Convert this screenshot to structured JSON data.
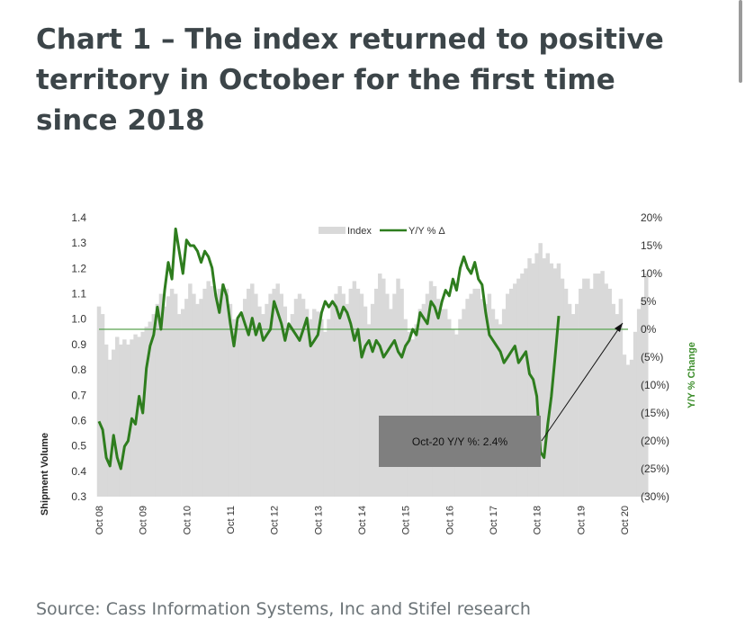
{
  "page": {
    "title": "Chart 1 – The index returned to positive territory in October for the first time since 2018",
    "source": "Source: Cass Information Systems, Inc and Stifel research"
  },
  "colors": {
    "index_bars": "#d9d9d9",
    "yoy_line": "#2e7d1e",
    "reference_line": "#5aa552",
    "annotation_box": "#7f7f7f",
    "text": "#3c4549"
  },
  "chart_data": {
    "type": "bar",
    "title": "",
    "left_axis": {
      "label": "Shipment Volume",
      "range": [
        0.3,
        1.4
      ],
      "ticks": [
        "1.4",
        "1.3",
        "1.2",
        "1.1",
        "1.0",
        "0.9",
        "0.8",
        "0.7",
        "0.6",
        "0.5",
        "0.4",
        "0.3"
      ]
    },
    "right_axis": {
      "label": "Y/Y % Change",
      "range": [
        -30,
        20
      ],
      "ticks": [
        "20%",
        "15%",
        "10%",
        "5%",
        "0%",
        "(5%)",
        "(10%)",
        "(15%)",
        "(20%)",
        "(25%)",
        "(30%)"
      ]
    },
    "x_labels": [
      "Oct 08",
      "Oct 09",
      "Oct 10",
      "Oct 11",
      "Oct 12",
      "Oct 13",
      "Oct 14",
      "Oct 15",
      "Oct 16",
      "Oct 17",
      "Oct 18",
      "Oct 19",
      "Oct 20"
    ],
    "legend": {
      "placement": "top-center",
      "entries": [
        "Index",
        "Y/Y % Δ"
      ]
    },
    "grid": false,
    "annotation": {
      "text": "Oct-20 Y/Y %: 2.4%"
    },
    "series": [
      {
        "name": "Index",
        "kind": "bar",
        "axis": "left",
        "anchors": [
          [
            0,
            1.05
          ],
          [
            1,
            1.02
          ],
          [
            2,
            0.9
          ],
          [
            3,
            0.84
          ],
          [
            4,
            0.88
          ],
          [
            5,
            0.93
          ],
          [
            6,
            0.9
          ],
          [
            7,
            0.92
          ],
          [
            8,
            0.9
          ],
          [
            9,
            0.92
          ],
          [
            10,
            0.94
          ],
          [
            11,
            0.93
          ],
          [
            12,
            0.95
          ],
          [
            13,
            0.97
          ],
          [
            14,
            0.99
          ],
          [
            15,
            1.02
          ],
          [
            16,
            1.06
          ],
          [
            17,
            1.1
          ],
          [
            18,
            1.05
          ],
          [
            19,
            1.09
          ],
          [
            20,
            1.12
          ],
          [
            21,
            1.1
          ],
          [
            22,
            1.02
          ],
          [
            23,
            1.04
          ],
          [
            24,
            1.08
          ],
          [
            25,
            1.14
          ],
          [
            26,
            1.1
          ],
          [
            27,
            1.06
          ],
          [
            28,
            1.08
          ],
          [
            29,
            1.12
          ],
          [
            30,
            1.15
          ],
          [
            31,
            1.13
          ],
          [
            32,
            1.1
          ],
          [
            33,
            1.12
          ],
          [
            34,
            1.14
          ],
          [
            35,
            1.12
          ],
          [
            36,
            1.06
          ],
          [
            37,
            1.0
          ],
          [
            38,
            0.98
          ],
          [
            39,
            1.02
          ],
          [
            40,
            1.08
          ],
          [
            41,
            1.12
          ],
          [
            42,
            1.14
          ],
          [
            43,
            1.1
          ],
          [
            44,
            1.05
          ],
          [
            45,
            1.02
          ],
          [
            46,
            1.06
          ],
          [
            47,
            1.1
          ],
          [
            48,
            1.12
          ],
          [
            49,
            1.14
          ],
          [
            50,
            1.1
          ],
          [
            51,
            1.05
          ],
          [
            52,
            0.98
          ],
          [
            53,
            1.02
          ],
          [
            54,
            1.08
          ],
          [
            55,
            1.1
          ],
          [
            56,
            1.08
          ],
          [
            57,
            1.04
          ],
          [
            58,
            1.0
          ],
          [
            59,
            1.04
          ],
          [
            60,
            1.03
          ],
          [
            61,
            1.0
          ],
          [
            62,
            0.95
          ],
          [
            63,
            1.0
          ],
          [
            64,
            1.06
          ],
          [
            65,
            1.1
          ],
          [
            66,
            1.13
          ],
          [
            67,
            1.1
          ],
          [
            68,
            1.06
          ],
          [
            69,
            1.12
          ],
          [
            70,
            1.15
          ],
          [
            71,
            1.12
          ],
          [
            72,
            1.1
          ],
          [
            73,
            1.05
          ],
          [
            74,
            0.98
          ],
          [
            75,
            1.06
          ],
          [
            76,
            1.12
          ],
          [
            77,
            1.18
          ],
          [
            78,
            1.16
          ],
          [
            79,
            1.1
          ],
          [
            80,
            1.04
          ],
          [
            81,
            1.1
          ],
          [
            82,
            1.16
          ],
          [
            83,
            1.12
          ],
          [
            84,
            1.0
          ],
          [
            85,
            0.95
          ],
          [
            86,
            0.92
          ],
          [
            87,
            0.98
          ],
          [
            88,
            1.04
          ],
          [
            89,
            1.06
          ],
          [
            90,
            1.1
          ],
          [
            91,
            1.15
          ],
          [
            92,
            1.13
          ],
          [
            93,
            1.08
          ],
          [
            94,
            1.04
          ],
          [
            95,
            1.04
          ],
          [
            96,
            1.0
          ],
          [
            97,
            0.96
          ],
          [
            98,
            0.94
          ],
          [
            99,
            1.0
          ],
          [
            100,
            1.04
          ],
          [
            101,
            1.08
          ],
          [
            102,
            1.1
          ],
          [
            103,
            1.12
          ],
          [
            104,
            1.12
          ],
          [
            105,
            1.08
          ],
          [
            106,
            1.06
          ],
          [
            107,
            1.1
          ],
          [
            108,
            1.04
          ],
          [
            109,
            1.0
          ],
          [
            110,
            0.98
          ],
          [
            111,
            1.04
          ],
          [
            112,
            1.1
          ],
          [
            113,
            1.12
          ],
          [
            114,
            1.14
          ],
          [
            115,
            1.16
          ],
          [
            116,
            1.18
          ],
          [
            117,
            1.2
          ],
          [
            118,
            1.24
          ],
          [
            119,
            1.22
          ],
          [
            120,
            1.26
          ],
          [
            121,
            1.3
          ],
          [
            122,
            1.24
          ],
          [
            123,
            1.26
          ],
          [
            124,
            1.22
          ],
          [
            125,
            1.2
          ],
          [
            126,
            1.22
          ],
          [
            127,
            1.16
          ],
          [
            128,
            1.12
          ],
          [
            129,
            1.06
          ],
          [
            130,
            1.02
          ],
          [
            131,
            1.06
          ],
          [
            132,
            1.12
          ],
          [
            133,
            1.16
          ],
          [
            134,
            1.16
          ],
          [
            135,
            1.12
          ],
          [
            136,
            1.18
          ],
          [
            137,
            1.18
          ],
          [
            138,
            1.19
          ],
          [
            139,
            1.14
          ],
          [
            140,
            1.12
          ],
          [
            141,
            1.06
          ],
          [
            142,
            1.02
          ],
          [
            143,
            1.08
          ],
          [
            144,
            0.86
          ],
          [
            145,
            0.82
          ],
          [
            146,
            0.84
          ],
          [
            147,
            0.95
          ],
          [
            148,
            1.04
          ],
          [
            149,
            1.08
          ],
          [
            150,
            1.18
          ]
        ]
      },
      {
        "name": "Y/Y % Δ",
        "kind": "line",
        "axis": "right",
        "anchors": [
          [
            0,
            -16.5
          ],
          [
            1,
            -18
          ],
          [
            2,
            -23
          ],
          [
            3,
            -24.5
          ],
          [
            4,
            -19
          ],
          [
            5,
            -23
          ],
          [
            6,
            -25
          ],
          [
            7,
            -21
          ],
          [
            8,
            -20
          ],
          [
            9,
            -16
          ],
          [
            10,
            -17
          ],
          [
            11,
            -12
          ],
          [
            12,
            -15
          ],
          [
            13,
            -7
          ],
          [
            14,
            -3
          ],
          [
            15,
            -1
          ],
          [
            16,
            4
          ],
          [
            17,
            0
          ],
          [
            18,
            7
          ],
          [
            19,
            12
          ],
          [
            20,
            9
          ],
          [
            21,
            18
          ],
          [
            22,
            14
          ],
          [
            23,
            10
          ],
          [
            24,
            16
          ],
          [
            25,
            15
          ],
          [
            26,
            15
          ],
          [
            27,
            14
          ],
          [
            28,
            12
          ],
          [
            29,
            14
          ],
          [
            30,
            13
          ],
          [
            31,
            11
          ],
          [
            32,
            6
          ],
          [
            33,
            3
          ],
          [
            34,
            8
          ],
          [
            35,
            6
          ],
          [
            36,
            1
          ],
          [
            37,
            -3
          ],
          [
            38,
            2
          ],
          [
            39,
            3
          ],
          [
            40,
            1
          ],
          [
            41,
            -1
          ],
          [
            42,
            2
          ],
          [
            43,
            -1
          ],
          [
            44,
            1
          ],
          [
            45,
            -2
          ],
          [
            46,
            -1
          ],
          [
            47,
            0
          ],
          [
            48,
            5
          ],
          [
            49,
            3
          ],
          [
            50,
            1
          ],
          [
            51,
            -2
          ],
          [
            52,
            1
          ],
          [
            53,
            0
          ],
          [
            54,
            -1
          ],
          [
            55,
            -2
          ],
          [
            56,
            0
          ],
          [
            57,
            2
          ],
          [
            58,
            -3
          ],
          [
            59,
            -2
          ],
          [
            60,
            -1
          ],
          [
            61,
            3
          ],
          [
            62,
            5
          ],
          [
            63,
            4
          ],
          [
            64,
            5
          ],
          [
            65,
            4
          ],
          [
            66,
            2
          ],
          [
            67,
            4
          ],
          [
            68,
            3
          ],
          [
            69,
            1
          ],
          [
            70,
            -2
          ],
          [
            71,
            0
          ],
          [
            72,
            -5
          ],
          [
            73,
            -3
          ],
          [
            74,
            -2
          ],
          [
            75,
            -4
          ],
          [
            76,
            -2
          ],
          [
            77,
            -3
          ],
          [
            78,
            -5
          ],
          [
            79,
            -4
          ],
          [
            80,
            -3
          ],
          [
            81,
            -2
          ],
          [
            82,
            -4
          ],
          [
            83,
            -5
          ],
          [
            84,
            -3
          ],
          [
            85,
            -2
          ],
          [
            86,
            0
          ],
          [
            87,
            -1
          ],
          [
            88,
            3
          ],
          [
            89,
            2
          ],
          [
            90,
            1
          ],
          [
            91,
            5
          ],
          [
            92,
            4
          ],
          [
            93,
            2
          ],
          [
            94,
            5
          ],
          [
            95,
            7
          ],
          [
            96,
            6
          ],
          [
            97,
            9
          ],
          [
            98,
            7
          ],
          [
            99,
            11
          ],
          [
            100,
            13
          ],
          [
            101,
            11
          ],
          [
            102,
            10
          ],
          [
            103,
            12
          ],
          [
            104,
            9
          ],
          [
            105,
            8
          ],
          [
            106,
            3
          ],
          [
            107,
            -1
          ],
          [
            108,
            -2
          ],
          [
            109,
            -3
          ],
          [
            110,
            -4
          ],
          [
            111,
            -6
          ],
          [
            112,
            -5
          ],
          [
            113,
            -4
          ],
          [
            114,
            -3
          ],
          [
            115,
            -6
          ],
          [
            116,
            -5
          ],
          [
            117,
            -4
          ],
          [
            118,
            -8
          ],
          [
            119,
            -9
          ],
          [
            120,
            -12
          ],
          [
            121,
            -22
          ],
          [
            122,
            -23
          ],
          [
            123,
            -17
          ],
          [
            124,
            -12
          ],
          [
            125,
            -5
          ],
          [
            126,
            2.4
          ]
        ]
      }
    ]
  }
}
